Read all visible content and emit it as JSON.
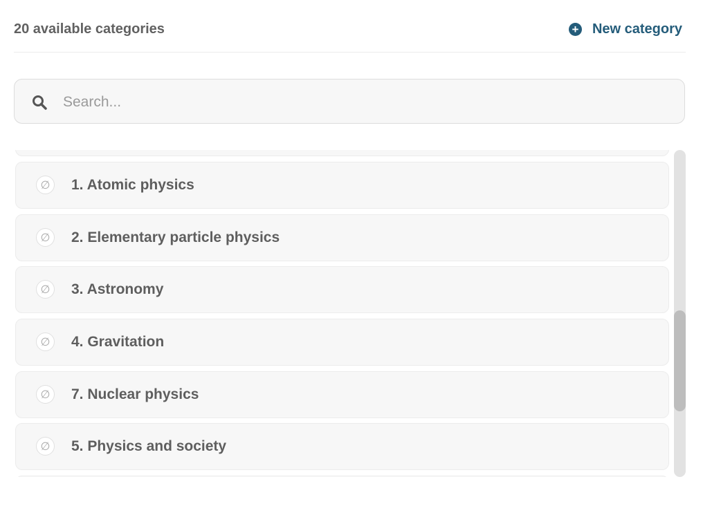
{
  "header": {
    "count_label": "20 available categories",
    "new_category_label": "New category"
  },
  "search": {
    "placeholder": "Search...",
    "value": ""
  },
  "list": {
    "items": [
      {
        "label": ""
      },
      {
        "label": "1. Atomic physics",
        "icon": "empty-set-icon"
      },
      {
        "label": "2. Elementary particle physics",
        "icon": "empty-set-icon"
      },
      {
        "label": "3. Astronomy",
        "icon": "empty-set-icon"
      },
      {
        "label": "4. Gravitation",
        "icon": "empty-set-icon"
      },
      {
        "label": "7. Nuclear physics",
        "icon": "empty-set-icon"
      },
      {
        "label": "5. Physics and society",
        "icon": "empty-set-icon"
      },
      {
        "label": ""
      }
    ]
  },
  "colors": {
    "accent": "#245c7a",
    "text": "#5e5e5e",
    "item_bg": "#f7f7f7"
  }
}
